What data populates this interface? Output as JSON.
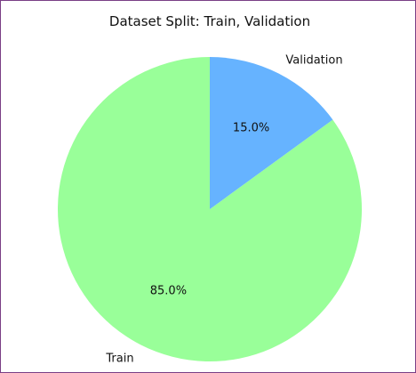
{
  "chart_data": {
    "type": "pie",
    "title": "Dataset Split: Train, Validation",
    "slices": [
      {
        "label": "Train",
        "value": 85.0,
        "percent_label": "85.0%",
        "color": "#99ff99"
      },
      {
        "label": "Validation",
        "value": 15.0,
        "percent_label": "15.0%",
        "color": "#66b3ff"
      }
    ],
    "start_angle_degrees": 90,
    "direction": "clockwise"
  },
  "colors": {
    "border": "#7a3f86",
    "background": "#ffffff"
  }
}
